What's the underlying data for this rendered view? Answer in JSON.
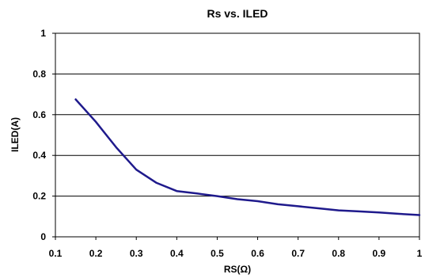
{
  "chart_data": {
    "type": "line",
    "title": "Rs vs. ILED",
    "xlabel": "RS(Ω)",
    "ylabel": "ILED(A)",
    "xlim": [
      0.1,
      1
    ],
    "ylim": [
      0,
      1
    ],
    "x_ticks": [
      "0.1",
      "0.2",
      "0.3",
      "0.4",
      "0.5",
      "0.6",
      "0.7",
      "0.8",
      "0.9",
      "1"
    ],
    "y_ticks": [
      "0",
      "0.2",
      "0.4",
      "0.6",
      "0.8",
      "1"
    ],
    "grid": "horizontal",
    "legend": "none",
    "series": [
      {
        "color": "#1f1a8c",
        "x": [
          0.15,
          0.2,
          0.25,
          0.3,
          0.35,
          0.4,
          0.45,
          0.5,
          0.55,
          0.6,
          0.65,
          0.7,
          0.75,
          0.8,
          0.85,
          0.9,
          0.95,
          1.0
        ],
        "y": [
          0.675,
          0.565,
          0.44,
          0.33,
          0.265,
          0.225,
          0.213,
          0.2,
          0.185,
          0.175,
          0.16,
          0.15,
          0.14,
          0.13,
          0.125,
          0.12,
          0.113,
          0.107
        ]
      }
    ]
  }
}
